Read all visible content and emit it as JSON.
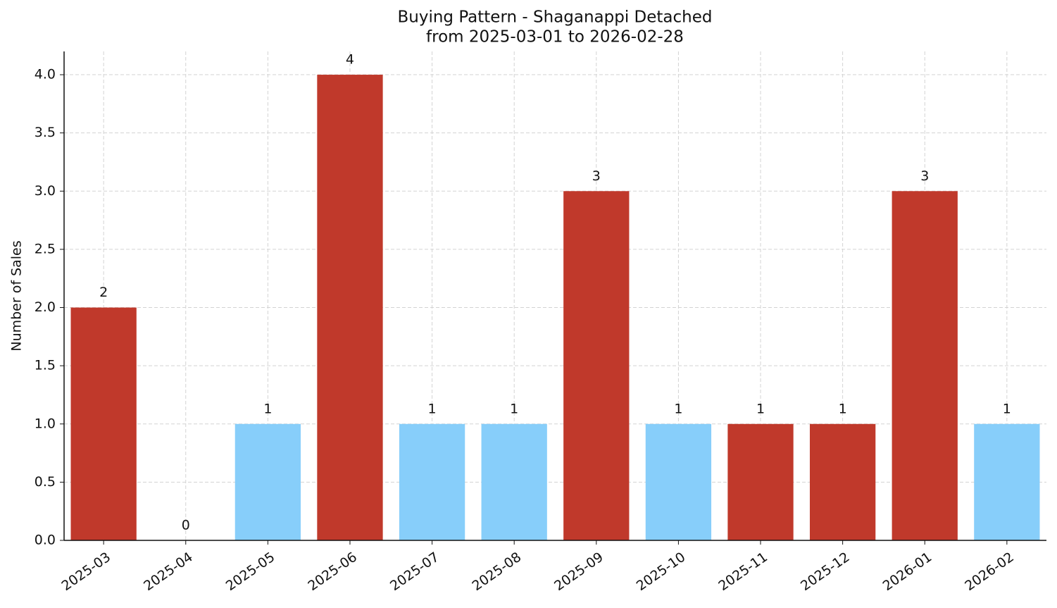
{
  "chart_data": {
    "type": "bar",
    "title": "Buying Pattern - Shaganappi Detached",
    "subtitle": "from 2025-03-01 to 2026-02-28",
    "y_label": "Number of Sales",
    "categories": [
      "2025-03",
      "2025-04",
      "2025-05",
      "2025-06",
      "2025-07",
      "2025-08",
      "2025-09",
      "2025-10",
      "2025-11",
      "2025-12",
      "2026-01",
      "2026-02"
    ],
    "values": [
      2,
      0,
      1,
      4,
      1,
      1,
      3,
      1,
      1,
      1,
      3,
      1
    ],
    "colors": [
      "#c0392b",
      "#87cefa",
      "#87cefa",
      "#c0392b",
      "#87cefa",
      "#87cefa",
      "#c0392b",
      "#87cefa",
      "#c0392b",
      "#c0392b",
      "#c0392b",
      "#87cefa"
    ],
    "ylim": [
      0,
      4.2
    ],
    "yticks": [
      {
        "value": 0,
        "label": "0.0"
      },
      0.5,
      {
        "value": 1,
        "label": "1.0"
      },
      1.5,
      {
        "value": 2,
        "label": "2.0"
      },
      2.5,
      {
        "value": 3,
        "label": "3.0"
      },
      3.5,
      {
        "value": 4,
        "label": "4.0"
      }
    ],
    "grid": true
  }
}
